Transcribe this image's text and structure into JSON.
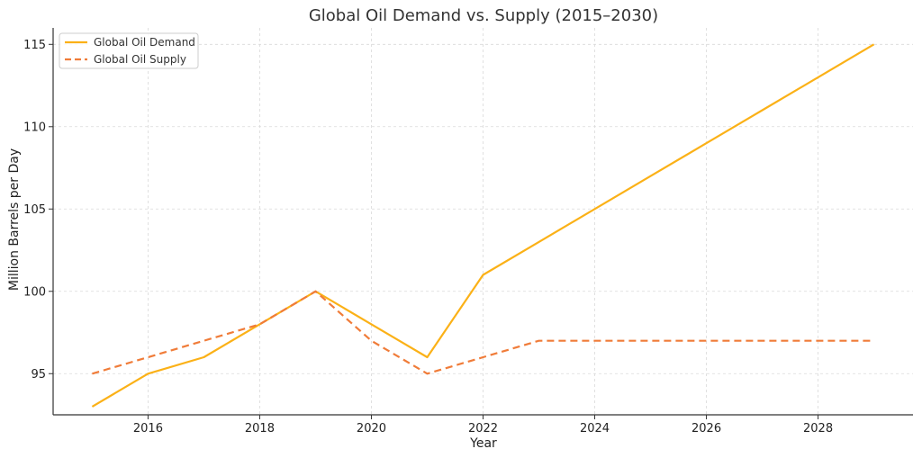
{
  "chart_data": {
    "type": "line",
    "title": "Global Oil Demand vs. Supply (2015–2030)",
    "xlabel": "Year",
    "ylabel": "Million Barrels per Day",
    "xlim": [
      2014.3,
      2029.7
    ],
    "ylim": [
      92.5,
      116
    ],
    "x_ticks": [
      2016,
      2018,
      2020,
      2022,
      2024,
      2026,
      2028
    ],
    "y_ticks": [
      95,
      100,
      105,
      110,
      115
    ],
    "grid": true,
    "legend_position": "top-left",
    "x": [
      2015,
      2016,
      2017,
      2018,
      2019,
      2020,
      2021,
      2022,
      2023,
      2024,
      2025,
      2026,
      2027,
      2028,
      2029
    ],
    "series": [
      {
        "name": "Global Oil Demand",
        "color": "#FBB117",
        "style": "solid",
        "values": [
          93,
          95,
          96,
          98,
          100,
          98,
          96,
          101,
          103,
          105,
          107,
          109,
          111,
          113,
          115
        ]
      },
      {
        "name": "Global Oil Supply",
        "color": "#F07C39",
        "style": "dashed",
        "values": [
          95,
          96,
          97,
          98,
          100,
          97,
          95,
          96,
          97,
          97,
          97,
          97,
          97,
          97,
          97
        ]
      }
    ]
  }
}
